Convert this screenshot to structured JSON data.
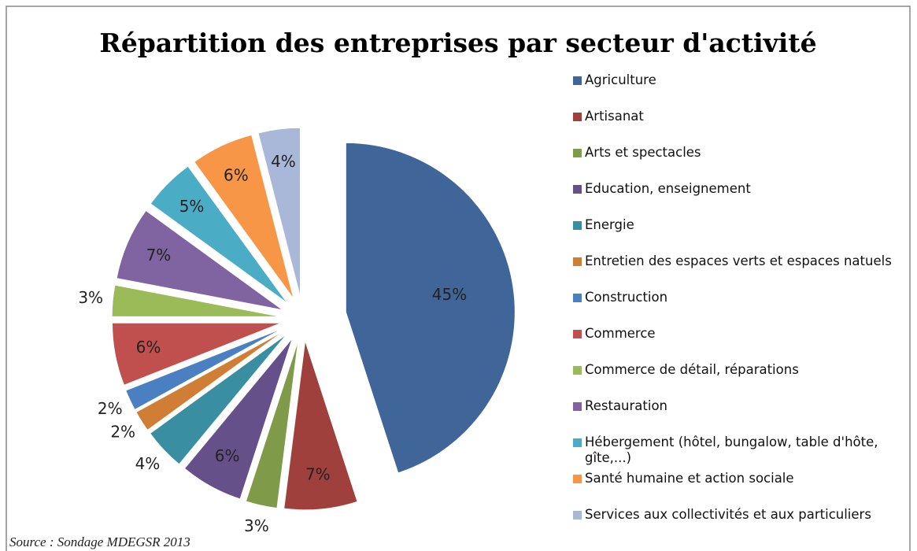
{
  "chart_data": {
    "type": "pie",
    "title": "Répartition des entreprises par secteur d'activité",
    "categories": [
      "Agriculture",
      "Artisanat",
      "Arts et spectacles",
      "Education, enseignement",
      "Energie",
      "Entretien des espaces verts et espaces natuels",
      "Construction",
      "Commerce",
      "Commerce de détail, réparations",
      "Restauration",
      "Hébergement (hôtel, bungalow, table d'hôte, gîte,...)",
      "Santé humaine et action sociale",
      "Services aux collectivités et aux particuliers"
    ],
    "values": [
      45,
      7,
      3,
      6,
      4,
      2,
      2,
      6,
      3,
      7,
      5,
      6,
      4
    ],
    "value_labels": [
      "45%",
      "7%",
      "3%",
      "6%",
      "4%",
      "2%",
      "2%",
      "6%",
      "3%",
      "7%",
      "5%",
      "6%",
      "4%"
    ],
    "colors": [
      "#3f6599",
      "#a0403d",
      "#7f9a48",
      "#66508a",
      "#3a8ea2",
      "#d07d35",
      "#4a7fc1",
      "#c0504d",
      "#9bbb59",
      "#8064a2",
      "#4bacc6",
      "#f79646",
      "#a9b8d9"
    ],
    "legend": "right",
    "source": "Source : Sondage MDEGSR 2013"
  }
}
